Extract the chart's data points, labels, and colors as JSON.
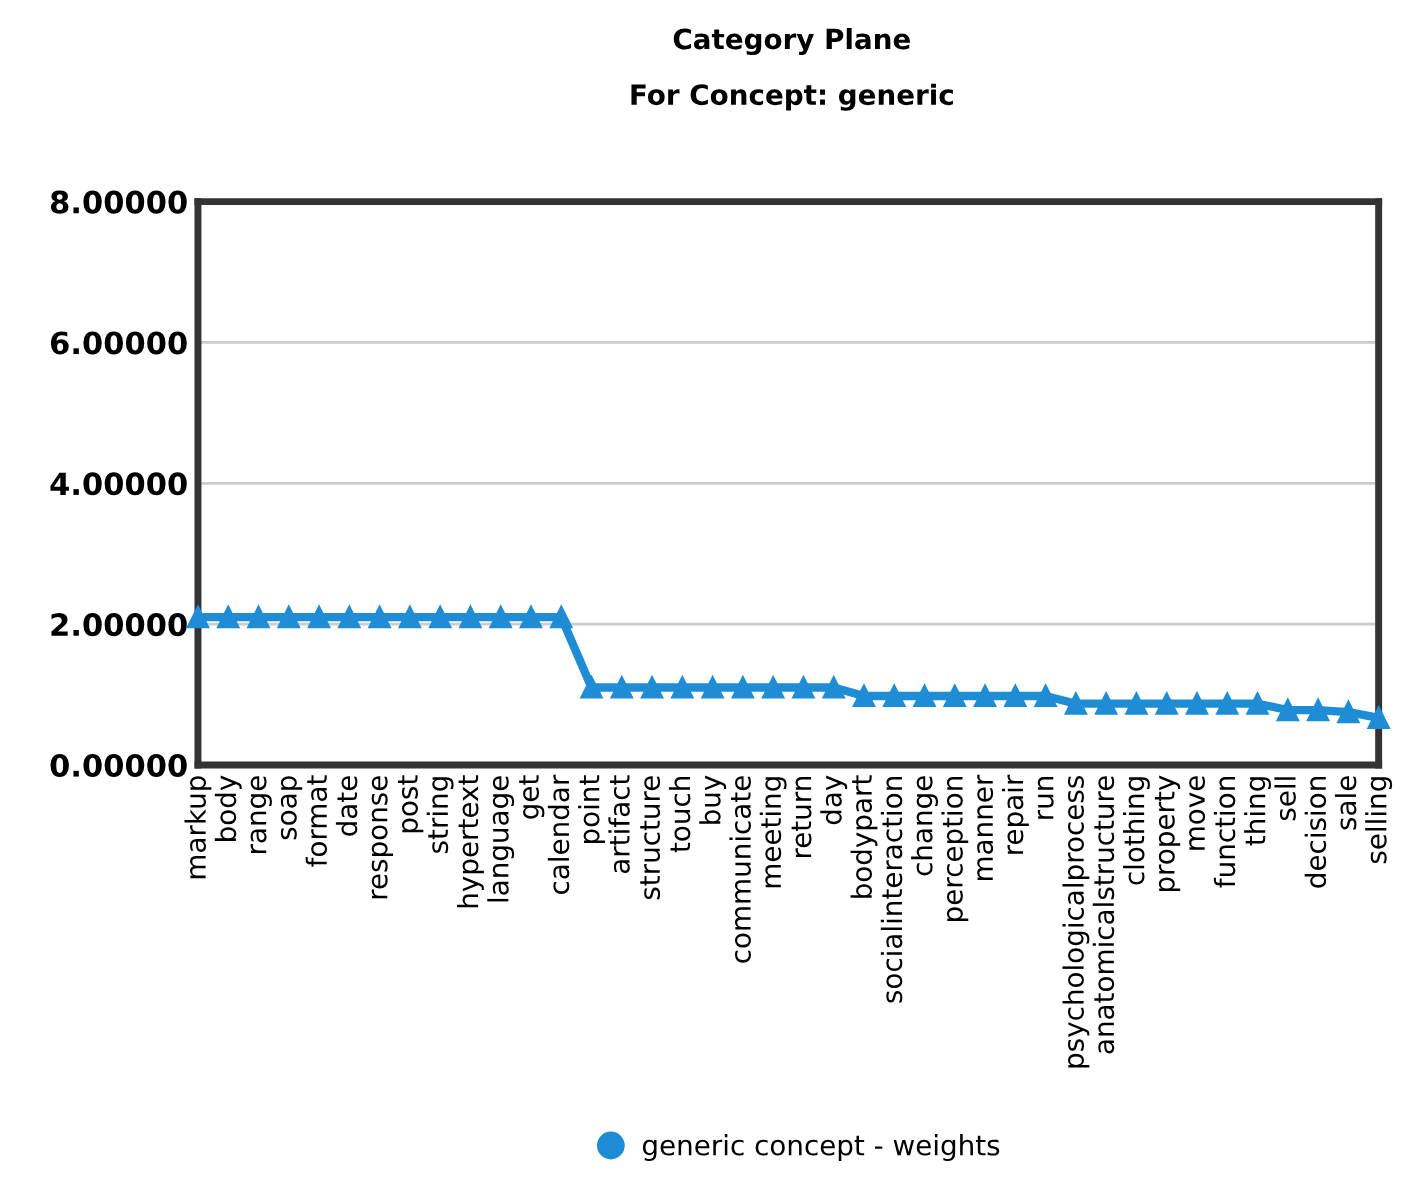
{
  "chart_data": {
    "type": "line",
    "title": "Category Plane",
    "subtitle": "For Concept: generic",
    "categories": [
      "markup",
      "body",
      "range",
      "soap",
      "format",
      "date",
      "response",
      "post",
      "string",
      "hypertext",
      "language",
      "get",
      "calendar",
      "point",
      "artifact",
      "structure",
      "touch",
      "buy",
      "communicate",
      "meeting",
      "return",
      "day",
      "bodypart",
      "socialinteraction",
      "change",
      "perception",
      "manner",
      "repair",
      "run",
      "psychologicalprocess",
      "anatomicalstructure",
      "clothing",
      "property",
      "move",
      "function",
      "thing",
      "sell",
      "decision",
      "sale",
      "selling"
    ],
    "series": [
      {
        "name": "generic concept - weights",
        "color": "#1f8dd6",
        "values": [
          2.1,
          2.1,
          2.1,
          2.1,
          2.1,
          2.1,
          2.1,
          2.1,
          2.1,
          2.1,
          2.1,
          2.1,
          2.1,
          1.1,
          1.1,
          1.1,
          1.1,
          1.1,
          1.1,
          1.1,
          1.1,
          1.1,
          0.98,
          0.98,
          0.98,
          0.98,
          0.98,
          0.98,
          0.98,
          0.87,
          0.87,
          0.87,
          0.87,
          0.87,
          0.87,
          0.87,
          0.78,
          0.78,
          0.75,
          0.67
        ]
      }
    ],
    "ylim": [
      0,
      8
    ],
    "yticks": [
      {
        "value": 0,
        "label": "0.00000"
      },
      {
        "value": 2,
        "label": "2.00000"
      },
      {
        "value": 4,
        "label": "4.00000"
      },
      {
        "value": 6,
        "label": "6.00000"
      },
      {
        "value": 8,
        "label": "8.00000"
      }
    ],
    "grid": "y",
    "legend": "bottom",
    "marker": "triangle",
    "line_style": "solid"
  }
}
